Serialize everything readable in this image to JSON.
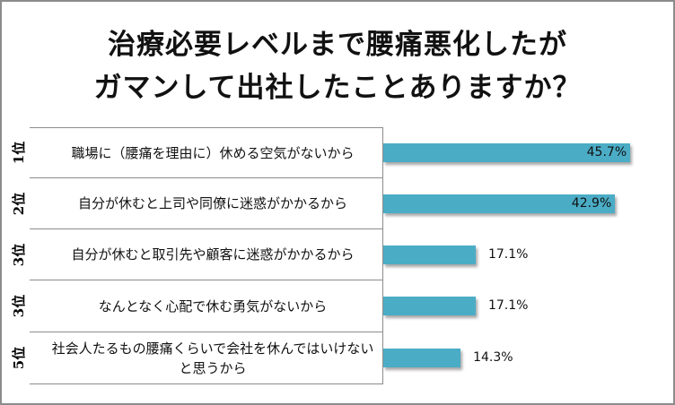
{
  "chart_data": {
    "type": "bar",
    "orientation": "horizontal",
    "title": [
      "治療必要レベルまで腰痛悪化したが",
      "ガマンして出社したことありますか？"
    ],
    "categories": [
      {
        "rank": "1位",
        "label": "職場に（腰痛を理由に）休める空気がないから"
      },
      {
        "rank": "2位",
        "label": "自分が休むと上司や同僚に迷惑がかかるから"
      },
      {
        "rank": "3位",
        "label": "自分が休むと取引先や顧客に迷惑がかかるから"
      },
      {
        "rank": "3位",
        "label": "なんとなく心配で休む勇気がないから"
      },
      {
        "rank": "5位",
        "label": "社会人たるもの腰痛くらいで会社を休んではいけないと思うから"
      }
    ],
    "values": [
      45.7,
      42.9,
      17.1,
      17.1,
      14.3
    ],
    "value_labels": [
      "45.7%",
      "42.9%",
      "17.1%",
      "17.1%",
      "14.3%"
    ],
    "unit": "%",
    "grid": false,
    "bar_color": "#4bacc6"
  }
}
